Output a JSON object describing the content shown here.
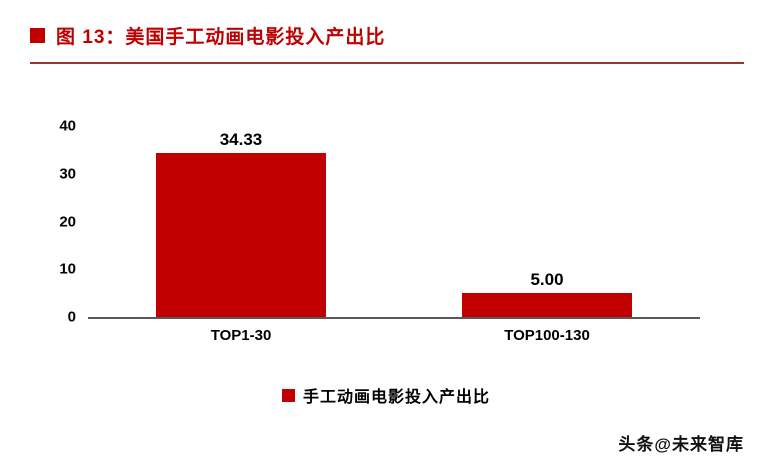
{
  "header": {
    "title": "图 13：美国手工动画电影投入产出比"
  },
  "chart_data": {
    "type": "bar",
    "title": "美国手工动画电影投入产出比",
    "categories": [
      "TOP1-30",
      "TOP100-130"
    ],
    "values": [
      34.33,
      5.0
    ],
    "value_labels": [
      "34.33",
      "5.00"
    ],
    "xlabel": "",
    "ylabel": "",
    "ylim": [
      0,
      40
    ],
    "yticks": [
      0,
      10,
      20,
      30,
      40
    ],
    "grid": false,
    "bar_color": "#c00000",
    "legend_position": "bottom",
    "legend_entries": [
      "手工动画电影投入产出比"
    ]
  },
  "legend": {
    "label": "手工动画电影投入产出比",
    "swatch_color": "#c00000"
  },
  "watermark": "头条@未来智库",
  "colors": {
    "title_red": "#c00000",
    "bar_red": "#c00000",
    "header_rule": "#943634",
    "axis_line": "#595959"
  }
}
